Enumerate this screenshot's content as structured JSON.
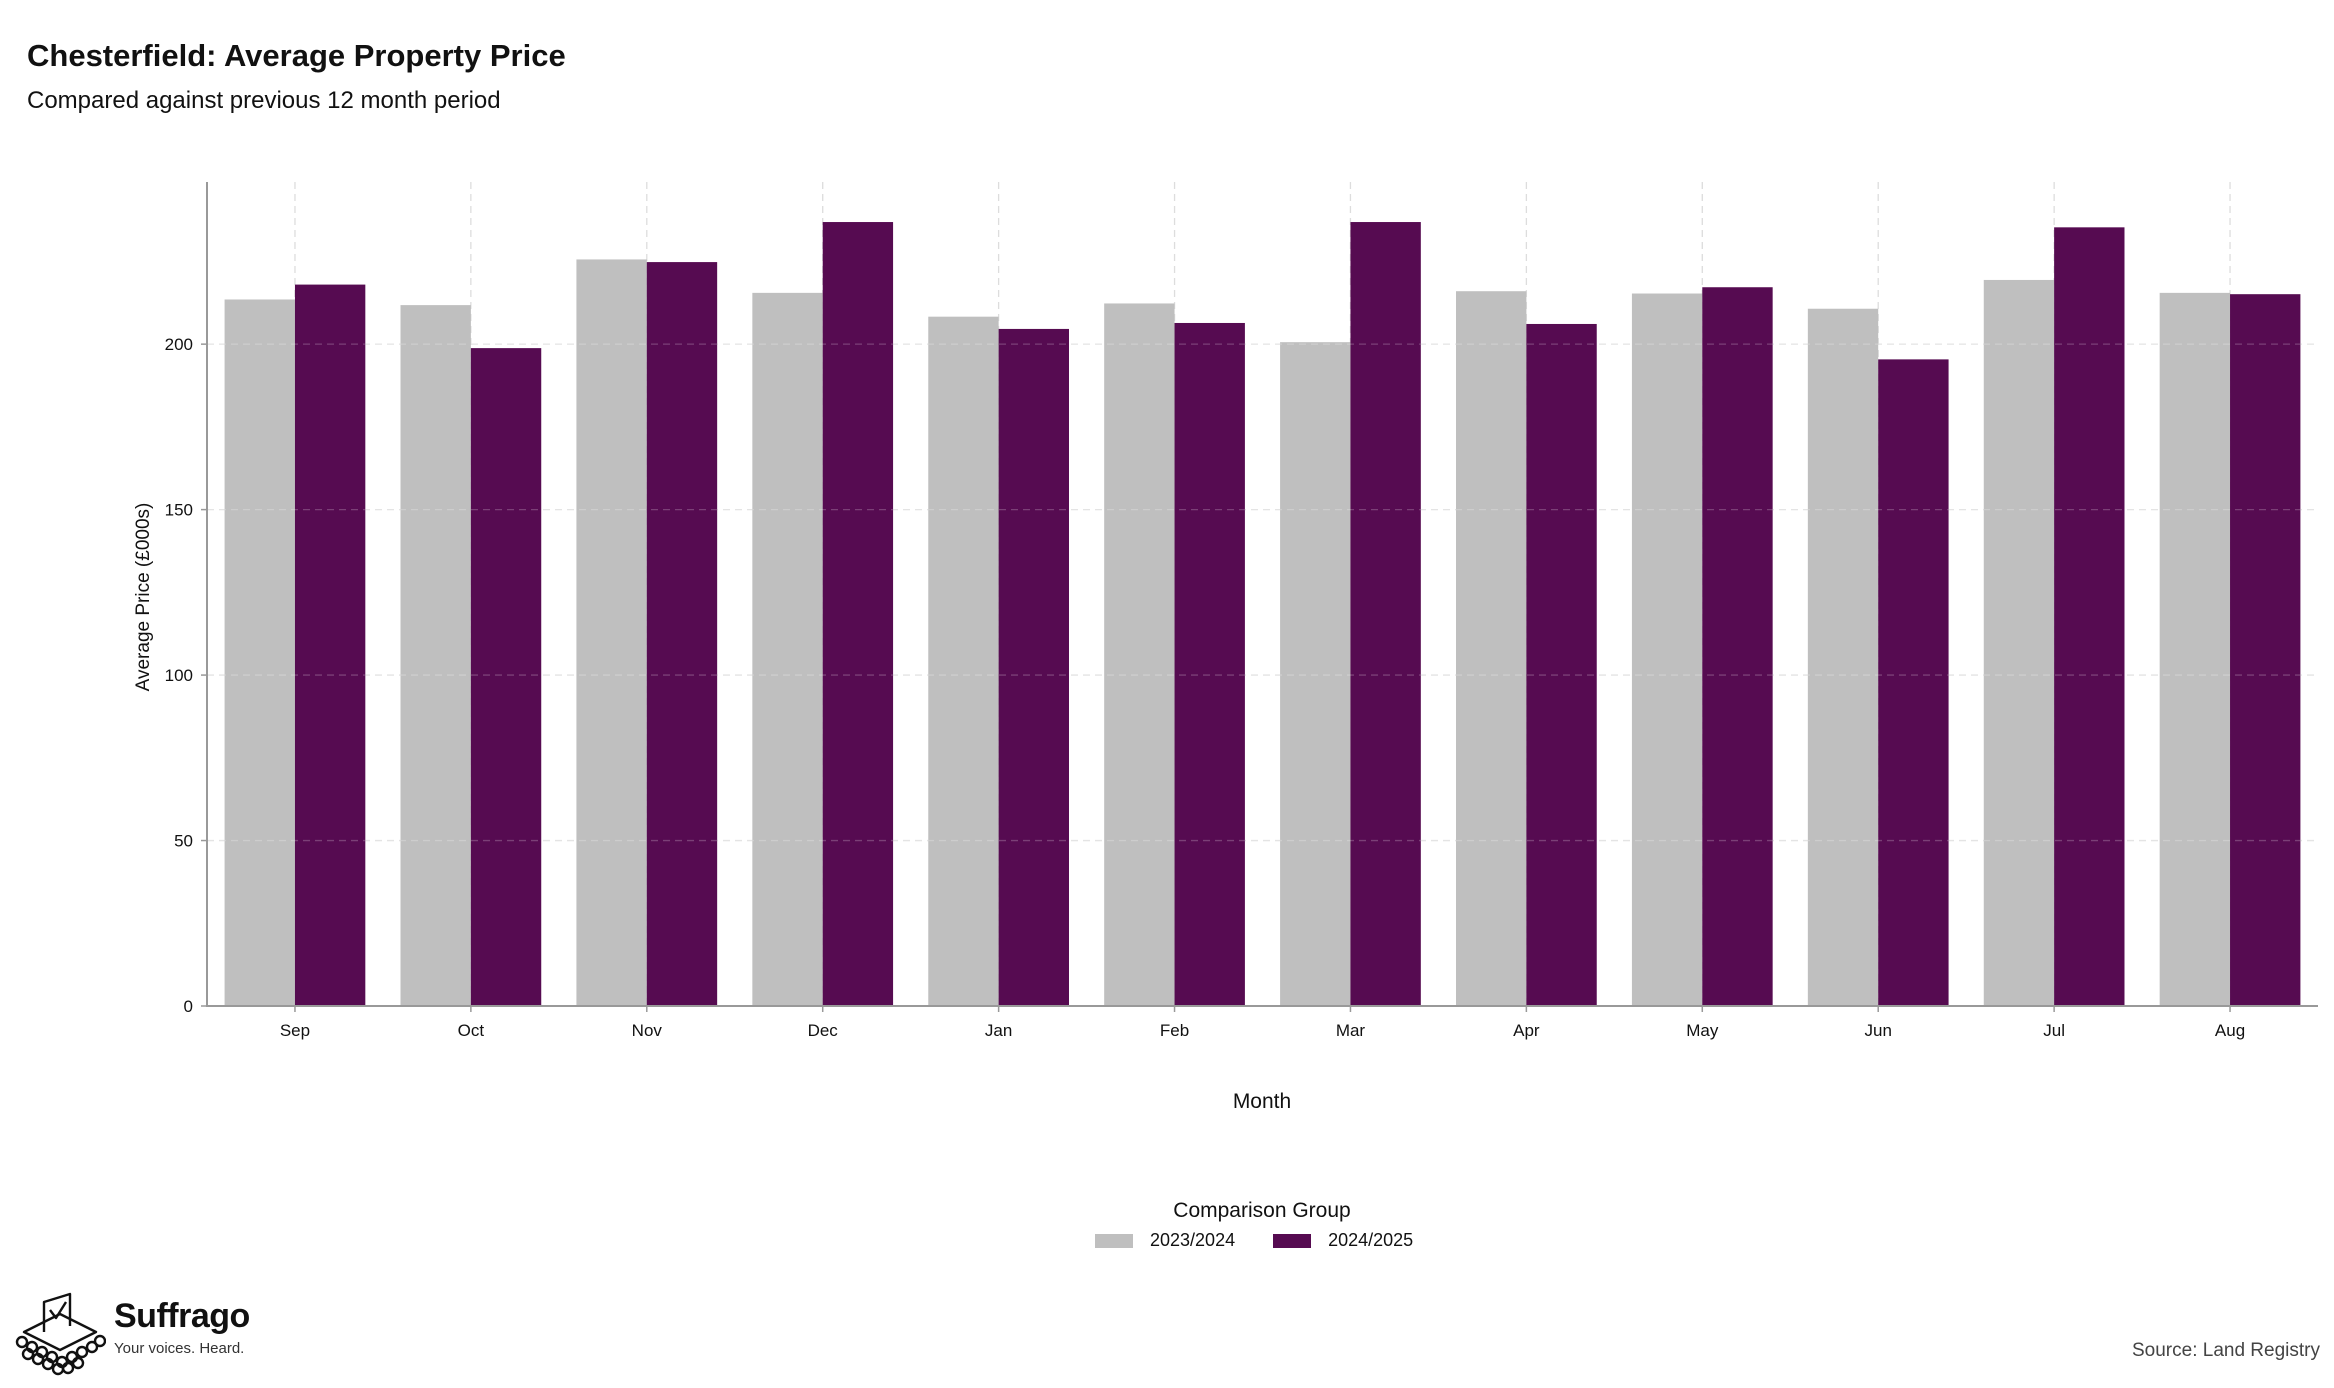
{
  "chart_data": {
    "type": "bar",
    "title": "Chesterfield: Average Property Price",
    "subtitle": "Compared against previous 12 month period",
    "xlabel": "Month",
    "ylabel": "Average Price (£000s)",
    "categories": [
      "Sep",
      "Oct",
      "Nov",
      "Dec",
      "Jan",
      "Feb",
      "Mar",
      "Apr",
      "May",
      "Jun",
      "Jul",
      "Aug"
    ],
    "series": [
      {
        "name": "2023/2024",
        "color": "#bfbfbf",
        "values": [
          213.5,
          211.8,
          225.6,
          215.5,
          208.3,
          212.3,
          200.6,
          216.0,
          215.3,
          210.7,
          219.4,
          215.5
        ]
      },
      {
        "name": "2024/2025",
        "color": "#560b51",
        "values": [
          218.0,
          198.8,
          224.8,
          236.9,
          204.6,
          206.4,
          236.9,
          206.1,
          217.2,
          195.4,
          235.3,
          215.1
        ]
      }
    ],
    "yticks": [
      0,
      50,
      100,
      150,
      200
    ],
    "ylim": [
      0,
      249
    ],
    "grid": true,
    "legend_title": "Comparison Group",
    "legend_position": "bottom"
  },
  "branding": {
    "name": "Suffrago",
    "tagline": "Your voices. Heard."
  },
  "source": "Source: Land Registry"
}
